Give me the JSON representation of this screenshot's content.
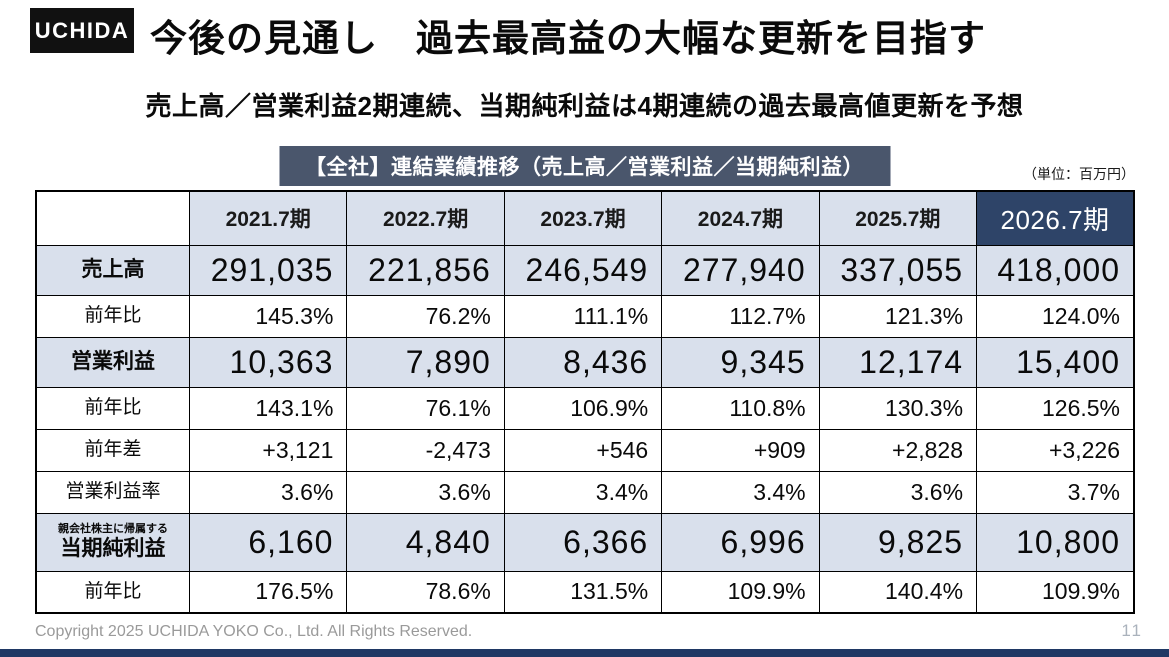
{
  "logo": "UCHIDA",
  "title": "今後の見通し　過去最高益の大幅な更新を目指す",
  "subtitle": "売上高／営業利益2期連続、当期純利益は4期連続の過去最高値更新を予想",
  "banner": "【全社】連結業績推移（売上高／営業利益／当期純利益）",
  "unit_label": "（単位：百万円）",
  "table": {
    "columns": [
      "2021.7期",
      "2022.7期",
      "2023.7期",
      "2024.7期",
      "2025.7期",
      "2026.7期"
    ],
    "rows": [
      {
        "label": "売上高",
        "sublabel": "",
        "type": "emphasis",
        "values": [
          "291,035",
          "221,856",
          "246,549",
          "277,940",
          "337,055",
          "418,000"
        ]
      },
      {
        "label": "前年比",
        "sublabel": "",
        "type": "detail",
        "values": [
          "145.3%",
          "76.2%",
          "111.1%",
          "112.7%",
          "121.3%",
          "124.0%"
        ]
      },
      {
        "label": "営業利益",
        "sublabel": "",
        "type": "emphasis",
        "values": [
          "10,363",
          "7,890",
          "8,436",
          "9,345",
          "12,174",
          "15,400"
        ]
      },
      {
        "label": "前年比",
        "sublabel": "",
        "type": "detail",
        "values": [
          "143.1%",
          "76.1%",
          "106.9%",
          "110.8%",
          "130.3%",
          "126.5%"
        ]
      },
      {
        "label": "前年差",
        "sublabel": "",
        "type": "detail",
        "values": [
          "+3,121",
          "-2,473",
          "+546",
          "+909",
          "+2,828",
          "+3,226"
        ]
      },
      {
        "label": "営業利益率",
        "sublabel": "",
        "type": "detail",
        "values": [
          "3.6%",
          "3.6%",
          "3.4%",
          "3.4%",
          "3.6%",
          "3.7%"
        ]
      },
      {
        "label": "当期純利益",
        "sublabel": "親会社株主に帰属する",
        "type": "emphasis",
        "values": [
          "6,160",
          "4,840",
          "6,366",
          "6,996",
          "9,825",
          "10,800"
        ]
      },
      {
        "label": "前年比",
        "sublabel": "",
        "type": "detail",
        "values": [
          "176.5%",
          "78.6%",
          "131.5%",
          "109.9%",
          "140.4%",
          "109.9%"
        ]
      }
    ]
  },
  "footer": {
    "copyright": "Copyright 2025 UCHIDA YOKO Co., Ltd. All Rights Reserved.",
    "page_number": "11"
  },
  "colors": {
    "logo_bg": "#111111",
    "banner_bg": "#4A566C",
    "final_header_bg": "#2E4468",
    "highlight_cell_bg": "#D9E0EC",
    "bottom_bar": "#1F3864"
  }
}
